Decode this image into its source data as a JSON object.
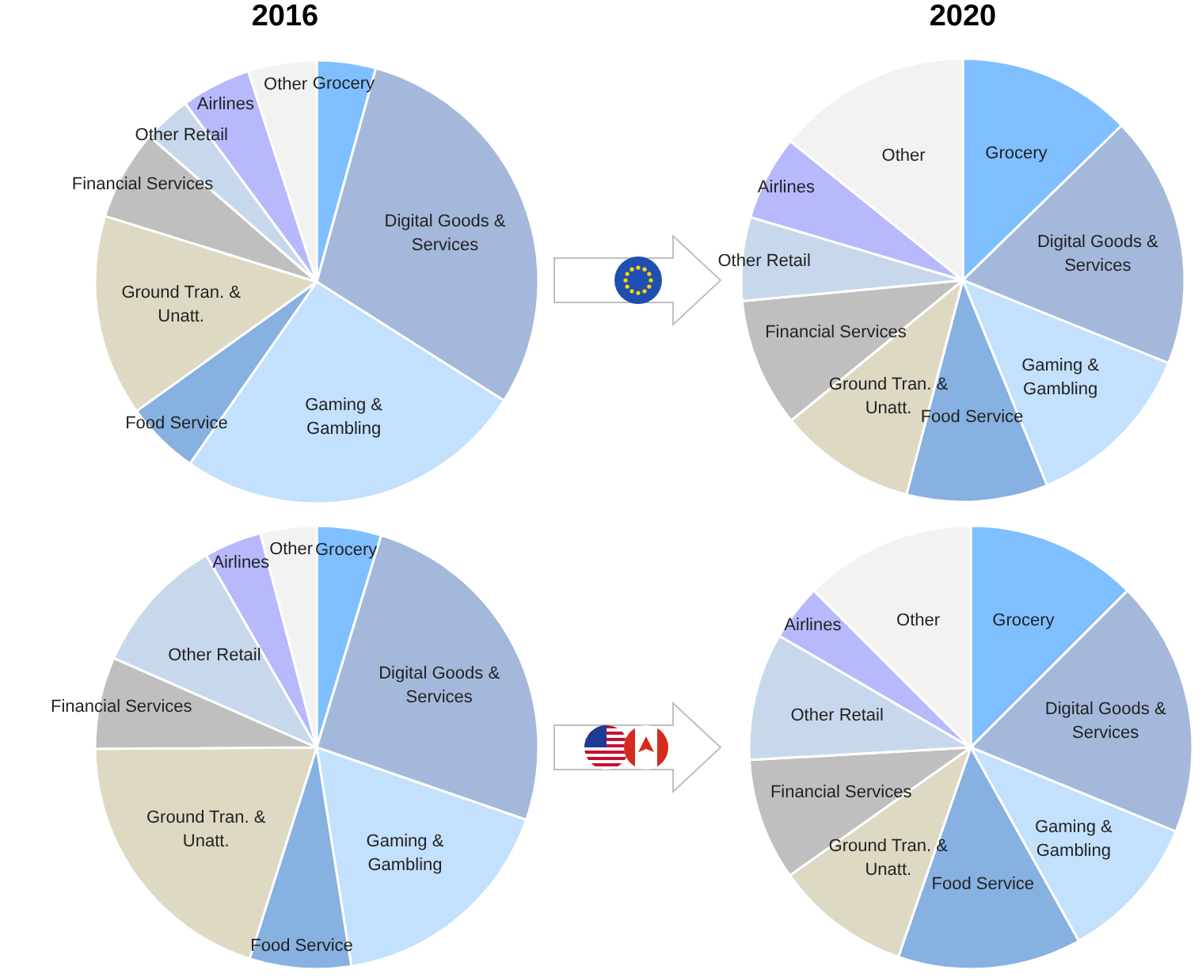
{
  "chart_data": [
    {
      "type": "pie",
      "title": "2016",
      "categories": [
        "Grocery",
        "Digital Goods & Services",
        "Gaming & Gambling",
        "Food Service",
        "Ground Tran. & Unatt.",
        "Financial Services",
        "Other Retail",
        "Airlines",
        "Other"
      ],
      "values": [
        4.3,
        29.7,
        25.7,
        5.4,
        14.7,
        6.6,
        3.5,
        5.1,
        5.0
      ],
      "colors": [
        "#7fbfff",
        "#a3b8da",
        "#c3e0fc",
        "#86b1e0",
        "#ddd9c3",
        "#bfbfbf",
        "#c8d8ec",
        "#b8b8fc",
        "#f2f2f2"
      ]
    },
    {
      "type": "pie",
      "title": "2020",
      "categories": [
        "Grocery",
        "Digital Goods & Services",
        "Gaming & Gambling",
        "Food Service",
        "Ground Tran. & Unatt.",
        "Financial Services",
        "Other Retail",
        "Airlines",
        "Other"
      ],
      "values": [
        12.7,
        18.4,
        12.7,
        10.3,
        10.0,
        9.4,
        6.1,
        6.2,
        14.2
      ],
      "colors": [
        "#7fbfff",
        "#a3b8da",
        "#c3e0fc",
        "#86b1e0",
        "#ddd9c3",
        "#bfbfbf",
        "#c8d8ec",
        "#b8b8fc",
        "#f2f2f2"
      ]
    },
    {
      "type": "pie",
      "categories": [
        "Grocery",
        "Digital Goods & Services",
        "Gaming & Gambling",
        "Food Service",
        "Ground Tran. & Unatt.",
        "Financial Services",
        "Other Retail",
        "Airlines",
        "Other"
      ],
      "values": [
        4.7,
        25.6,
        17.2,
        7.4,
        20.0,
        6.7,
        10.1,
        4.2,
        4.1
      ],
      "colors": [
        "#7fbfff",
        "#a3b8da",
        "#c3e0fc",
        "#86b1e0",
        "#ddd9c3",
        "#bfbfbf",
        "#c8d8ec",
        "#b8b8fc",
        "#f2f2f2"
      ]
    },
    {
      "type": "pie",
      "categories": [
        "Grocery",
        "Digital Goods & Services",
        "Gaming & Gambling",
        "Food Service",
        "Ground Tran. & Unatt.",
        "Financial Services",
        "Other Retail",
        "Airlines",
        "Other"
      ],
      "values": [
        12.5,
        18.7,
        10.7,
        13.4,
        9.9,
        8.9,
        9.3,
        4.1,
        12.5
      ],
      "colors": [
        "#7fbfff",
        "#a3b8da",
        "#c3e0fc",
        "#86b1e0",
        "#ddd9c3",
        "#bfbfbf",
        "#c8d8ec",
        "#b8b8fc",
        "#f2f2f2"
      ]
    }
  ]
}
